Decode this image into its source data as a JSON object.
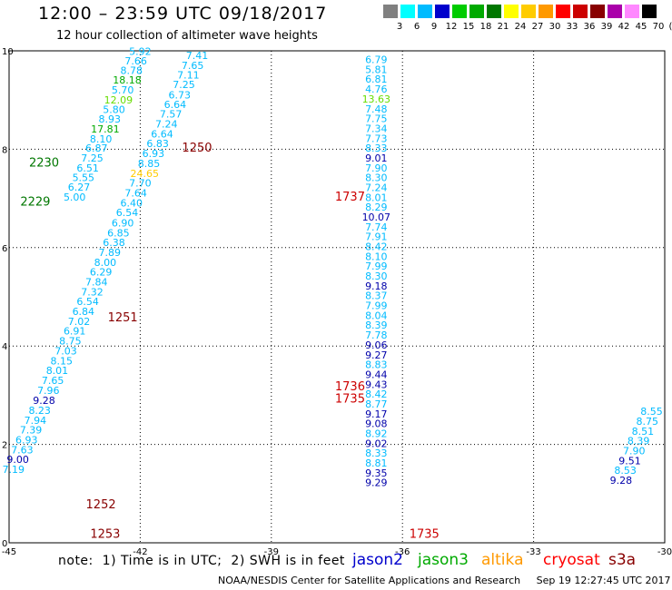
{
  "title": "12:00 – 23:59 UTC 09/18/2017",
  "subtitle": "12 hour collection of altimeter wave heights",
  "color_scale": {
    "swatches": [
      "#808080",
      "#00ffff",
      "#00bbff",
      "#0000cc",
      "#00cc00",
      "#00aa00",
      "#007700",
      "#ffff00",
      "#ffcc00",
      "#ff9900",
      "#ff0000",
      "#cc0000",
      "#880000",
      "#aa00aa",
      "#ff88ff",
      "#000000"
    ],
    "labels": [
      "3",
      "6",
      "9",
      "12",
      "15",
      "18",
      "21",
      "24",
      "27",
      "30",
      "33",
      "36",
      "39",
      "42",
      "45",
      "70",
      "(ft)"
    ]
  },
  "map": {
    "lon_range": [
      -45,
      -30
    ],
    "lat_range": [
      0,
      10
    ],
    "x_ticks": [
      "-45",
      "-42",
      "-39",
      "-36",
      "-33",
      "-30"
    ],
    "y_ticks": [
      "0",
      "2",
      "4",
      "6",
      "8",
      "10"
    ],
    "tracks": [
      {
        "color": "#00bbff",
        "values": [
          [
            "5.92",
            -42.0,
            9.92
          ],
          [
            "7.66",
            -42.1,
            9.72
          ],
          [
            "8.78",
            -42.2,
            9.53
          ],
          [
            "18.18",
            -42.3,
            9.34
          ],
          [
            "5.70",
            -42.4,
            9.13
          ],
          [
            "12.09",
            -42.5,
            8.93
          ],
          [
            "5.80",
            -42.6,
            8.74
          ],
          [
            "8.93",
            -42.7,
            8.54
          ],
          [
            "17.81",
            -42.8,
            8.34
          ],
          [
            "8.10",
            -42.9,
            8.14
          ],
          [
            "6.87",
            -43.0,
            7.95
          ],
          [
            "7.25",
            -43.1,
            7.75
          ],
          [
            "6.51",
            -43.2,
            7.55
          ],
          [
            "5.55",
            -43.3,
            7.35
          ],
          [
            "6.27",
            -43.4,
            7.16
          ],
          [
            "5.00",
            -43.5,
            6.96
          ]
        ]
      },
      {
        "color": "#00bbff",
        "values": [
          [
            "7.41",
            -40.7,
            9.83
          ],
          [
            "7.65",
            -40.8,
            9.63
          ],
          [
            "7.11",
            -40.9,
            9.44
          ],
          [
            "7.25",
            -41.0,
            9.24
          ],
          [
            "6.73",
            -41.1,
            9.03
          ],
          [
            "6.64",
            -41.2,
            8.84
          ],
          [
            "7.57",
            -41.3,
            8.64
          ],
          [
            "7.24",
            -41.4,
            8.44
          ],
          [
            "6.64",
            -41.5,
            8.24
          ],
          [
            "6.83",
            -41.6,
            8.04
          ],
          [
            "6.93",
            -41.7,
            7.84
          ],
          [
            "8.85",
            -41.8,
            7.64
          ],
          [
            "24.65",
            -41.9,
            7.44
          ],
          [
            "7.70",
            -42.0,
            7.24
          ],
          [
            "7.64",
            -42.1,
            7.04
          ],
          [
            "6.40",
            -42.2,
            6.84
          ],
          [
            "6.54",
            -42.3,
            6.64
          ],
          [
            "6.90",
            -42.4,
            6.43
          ],
          [
            "6.85",
            -42.5,
            6.23
          ],
          [
            "6.38",
            -42.6,
            6.03
          ],
          [
            "7.89",
            -42.7,
            5.83
          ],
          [
            "8.00",
            -42.8,
            5.63
          ],
          [
            "6.29",
            -42.9,
            5.43
          ],
          [
            "7.84",
            -43.0,
            5.23
          ],
          [
            "7.32",
            -43.1,
            5.03
          ],
          [
            "6.54",
            -43.2,
            4.83
          ],
          [
            "6.84",
            -43.3,
            4.63
          ],
          [
            "7.02",
            -43.4,
            4.43
          ],
          [
            "6.91",
            -43.5,
            4.23
          ],
          [
            "8.75",
            -43.6,
            4.03
          ],
          [
            "7.03",
            -43.7,
            3.83
          ],
          [
            "8.15",
            -43.8,
            3.63
          ],
          [
            "8.01",
            -43.9,
            3.43
          ],
          [
            "7.65",
            -44.0,
            3.23
          ],
          [
            "7.96",
            -44.1,
            3.03
          ],
          [
            "9.28",
            -44.2,
            2.82
          ],
          [
            "8.23",
            -44.3,
            2.62
          ],
          [
            "7.94",
            -44.4,
            2.42
          ],
          [
            "7.39",
            -44.5,
            2.22
          ],
          [
            "6.93",
            -44.6,
            2.02
          ],
          [
            "7.63",
            -44.7,
            1.82
          ],
          [
            "9.00",
            -44.8,
            1.62
          ],
          [
            "7.19",
            -44.9,
            1.42
          ]
        ]
      },
      {
        "color": "#00bbff",
        "values": [
          [
            "6.79",
            -36.6,
            9.75
          ],
          [
            "5.81",
            -36.6,
            9.55
          ],
          [
            "6.81",
            -36.6,
            9.35
          ],
          [
            "4.76",
            -36.6,
            9.15
          ],
          [
            "13.63",
            -36.6,
            8.95
          ],
          [
            "7.48",
            -36.6,
            8.75
          ],
          [
            "7.75",
            -36.6,
            8.55
          ],
          [
            "7.34",
            -36.6,
            8.35
          ],
          [
            "7.73",
            -36.6,
            8.15
          ],
          [
            "8.33",
            -36.6,
            7.95
          ],
          [
            "9.01",
            -36.6,
            7.75
          ],
          [
            "7.90",
            -36.6,
            7.55
          ],
          [
            "8.30",
            -36.6,
            7.35
          ],
          [
            "7.24",
            -36.6,
            7.15
          ],
          [
            "8.01",
            -36.6,
            6.95
          ],
          [
            "8.29",
            -36.6,
            6.75
          ],
          [
            "10.07",
            -36.6,
            6.55
          ],
          [
            "7.74",
            -36.6,
            6.35
          ],
          [
            "7.91",
            -36.6,
            6.15
          ],
          [
            "8.42",
            -36.6,
            5.95
          ],
          [
            "8.10",
            -36.6,
            5.75
          ],
          [
            "7.99",
            -36.6,
            5.55
          ],
          [
            "8.30",
            -36.6,
            5.35
          ],
          [
            "9.18",
            -36.6,
            5.15
          ],
          [
            "8.37",
            -36.6,
            4.95
          ],
          [
            "7.99",
            -36.6,
            4.75
          ],
          [
            "8.04",
            -36.6,
            4.55
          ],
          [
            "8.39",
            -36.6,
            4.35
          ],
          [
            "7.78",
            -36.6,
            4.15
          ],
          [
            "9.06",
            -36.6,
            3.95
          ],
          [
            "9.27",
            -36.6,
            3.75
          ],
          [
            "8.83",
            -36.6,
            3.55
          ],
          [
            "9.44",
            -36.6,
            3.35
          ],
          [
            "9.43",
            -36.6,
            3.15
          ],
          [
            "8.42",
            -36.6,
            2.95
          ],
          [
            "8.77",
            -36.6,
            2.75
          ],
          [
            "9.17",
            -36.6,
            2.55
          ],
          [
            "9.08",
            -36.6,
            2.35
          ],
          [
            "8.92",
            -36.6,
            2.15
          ],
          [
            "9.02",
            -36.6,
            1.95
          ],
          [
            "8.33",
            -36.6,
            1.75
          ],
          [
            "8.81",
            -36.6,
            1.55
          ],
          [
            "9.35",
            -36.6,
            1.35
          ],
          [
            "9.29",
            -36.6,
            1.15
          ]
        ]
      },
      {
        "color": "#00bbff",
        "values": [
          [
            "8.55",
            -30.3,
            2.6
          ],
          [
            "8.75",
            -30.4,
            2.4
          ],
          [
            "8.51",
            -30.5,
            2.2
          ],
          [
            "8.39",
            -30.6,
            2.0
          ],
          [
            "7.90",
            -30.7,
            1.8
          ],
          [
            "9.51",
            -30.8,
            1.6
          ],
          [
            "8.53",
            -30.9,
            1.4
          ],
          [
            "9.28",
            -31.0,
            1.2
          ]
        ]
      }
    ],
    "time_labels": [
      {
        "text": "2230",
        "color": "#007700"
      },
      {
        "text": "2229",
        "color": "#007700"
      },
      {
        "text": "1250",
        "color": "#880000"
      },
      {
        "text": "1251",
        "color": "#880000"
      },
      {
        "text": "1252",
        "color": "#880000"
      },
      {
        "text": "1253",
        "color": "#880000"
      },
      {
        "text": "1737",
        "color": "#cc0000"
      },
      {
        "text": "1736",
        "color": "#cc0000"
      },
      {
        "text": "1735",
        "color": "#cc0000"
      },
      {
        "text": "1735",
        "color": "#cc0000"
      }
    ]
  },
  "note": "note:  1) Time is in UTC;  2) SWH is in feet",
  "satellites": [
    {
      "name": "jason2",
      "color": "#0000cc"
    },
    {
      "name": "jason3",
      "color": "#00aa00"
    },
    {
      "name": "altika",
      "color": "#ff9900"
    },
    {
      "name": "cryosat",
      "color": "#ff0000"
    },
    {
      "name": "s3a",
      "color": "#880000"
    }
  ],
  "credit": "NOAA/NESDIS Center for Satellite Applications and Research     Sep 19 12:27:45 UTC 2017"
}
